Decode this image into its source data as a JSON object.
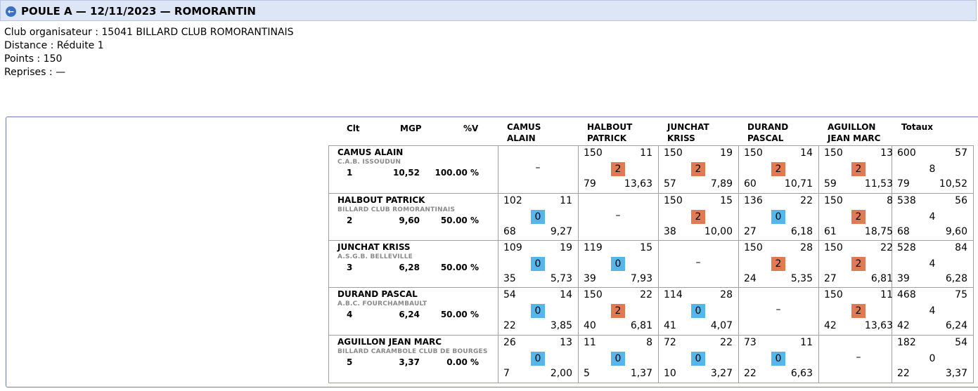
{
  "header": {
    "title": "POULE A — 12/11/2023 — ROMORANTIN"
  },
  "info": {
    "club": "Club organisateur : 15041 BILLARD CLUB ROMORANTINAIS",
    "distance": "Distance : Réduite 1",
    "points": "Points : 150",
    "reprises": "Reprises : —"
  },
  "table": {
    "col_clt": "Clt",
    "col_mgp": "MGP",
    "col_pv": "%V",
    "opponents": [
      {
        "line1": "CAMUS",
        "line2": "ALAIN"
      },
      {
        "line1": "HALBOUT",
        "line2": "PATRICK"
      },
      {
        "line1": "JUNCHAT",
        "line2": "KRISS"
      },
      {
        "line1": "DURAND",
        "line2": "PASCAL"
      },
      {
        "line1": "AGUILLON",
        "line2": "JEAN MARC"
      }
    ],
    "col_totaux": "Totaux",
    "rows": [
      {
        "name": "CAMUS ALAIN",
        "club": "C.A.B. ISSOUDUN",
        "clt": "1",
        "mgp": "10,52",
        "pv": "100.00 %",
        "cells": [
          {
            "dash": "–"
          },
          {
            "points": "150",
            "reprises": "11",
            "match_pts": "2",
            "result": "win",
            "serie": "79",
            "moyenne": "13,63"
          },
          {
            "points": "150",
            "reprises": "19",
            "match_pts": "2",
            "result": "win",
            "serie": "57",
            "moyenne": "7,89"
          },
          {
            "points": "150",
            "reprises": "14",
            "match_pts": "2",
            "result": "win",
            "serie": "60",
            "moyenne": "10,71"
          },
          {
            "points": "150",
            "reprises": "13",
            "match_pts": "2",
            "result": "win",
            "serie": "59",
            "moyenne": "11,53"
          },
          {
            "points": "600",
            "reprises": "57",
            "match_pts": "8",
            "result": "plain",
            "serie": "79",
            "moyenne": "10,52"
          }
        ]
      },
      {
        "name": "HALBOUT PATRICK",
        "club": "BILLARD CLUB ROMORANTINAIS",
        "clt": "2",
        "mgp": "9,60",
        "pv": "50.00 %",
        "cells": [
          {
            "points": "102",
            "reprises": "11",
            "match_pts": "0",
            "result": "loss",
            "serie": "68",
            "moyenne": "9,27"
          },
          {
            "dash": "–"
          },
          {
            "points": "150",
            "reprises": "15",
            "match_pts": "2",
            "result": "win",
            "serie": "38",
            "moyenne": "10,00"
          },
          {
            "points": "136",
            "reprises": "22",
            "match_pts": "0",
            "result": "loss",
            "serie": "27",
            "moyenne": "6,18"
          },
          {
            "points": "150",
            "reprises": "8",
            "match_pts": "2",
            "result": "win",
            "serie": "61",
            "moyenne": "18,75"
          },
          {
            "points": "538",
            "reprises": "56",
            "match_pts": "4",
            "result": "plain",
            "serie": "68",
            "moyenne": "9,60"
          }
        ]
      },
      {
        "name": "JUNCHAT KRISS",
        "club": "A.S.G.B. BELLEVILLE",
        "clt": "3",
        "mgp": "6,28",
        "pv": "50.00 %",
        "cells": [
          {
            "points": "109",
            "reprises": "19",
            "match_pts": "0",
            "result": "loss",
            "serie": "35",
            "moyenne": "5,73"
          },
          {
            "points": "119",
            "reprises": "15",
            "match_pts": "0",
            "result": "loss",
            "serie": "39",
            "moyenne": "7,93"
          },
          {
            "dash": "–"
          },
          {
            "points": "150",
            "reprises": "28",
            "match_pts": "2",
            "result": "win",
            "serie": "24",
            "moyenne": "5,35"
          },
          {
            "points": "150",
            "reprises": "22",
            "match_pts": "2",
            "result": "win",
            "serie": "27",
            "moyenne": "6,81"
          },
          {
            "points": "528",
            "reprises": "84",
            "match_pts": "4",
            "result": "plain",
            "serie": "39",
            "moyenne": "6,28"
          }
        ]
      },
      {
        "name": "DURAND PASCAL",
        "club": "A.B.C. FOURCHAMBAULT",
        "clt": "4",
        "mgp": "6,24",
        "pv": "50.00 %",
        "cells": [
          {
            "points": "54",
            "reprises": "14",
            "match_pts": "0",
            "result": "loss",
            "serie": "22",
            "moyenne": "3,85"
          },
          {
            "points": "150",
            "reprises": "22",
            "match_pts": "2",
            "result": "win",
            "serie": "40",
            "moyenne": "6,81"
          },
          {
            "points": "114",
            "reprises": "28",
            "match_pts": "0",
            "result": "loss",
            "serie": "41",
            "moyenne": "4,07"
          },
          {
            "dash": "–"
          },
          {
            "points": "150",
            "reprises": "11",
            "match_pts": "2",
            "result": "win",
            "serie": "42",
            "moyenne": "13,63"
          },
          {
            "points": "468",
            "reprises": "75",
            "match_pts": "4",
            "result": "plain",
            "serie": "42",
            "moyenne": "6,24"
          }
        ]
      },
      {
        "name": "AGUILLON JEAN MARC",
        "club": "BILLARD CARAMBOLE CLUB DE BOURGES",
        "clt": "5",
        "mgp": "3,37",
        "pv": "0.00 %",
        "cells": [
          {
            "points": "26",
            "reprises": "13",
            "match_pts": "0",
            "result": "loss",
            "serie": "7",
            "moyenne": "2,00"
          },
          {
            "points": "11",
            "reprises": "8",
            "match_pts": "0",
            "result": "loss",
            "serie": "5",
            "moyenne": "1,37"
          },
          {
            "points": "72",
            "reprises": "22",
            "match_pts": "0",
            "result": "loss",
            "serie": "10",
            "moyenne": "3,27"
          },
          {
            "points": "73",
            "reprises": "11",
            "match_pts": "0",
            "result": "loss",
            "serie": "22",
            "moyenne": "6,63"
          },
          {
            "dash": "–"
          },
          {
            "points": "182",
            "reprises": "54",
            "match_pts": "0",
            "result": "plain",
            "serie": "22",
            "moyenne": "3,37"
          }
        ]
      }
    ]
  },
  "colors": {
    "win": "#e07a52",
    "loss": "#55b6ec",
    "title_bg": "#dde6f7",
    "border": "#6b7fae"
  },
  "icons": {
    "back": "back-arrow-icon"
  }
}
